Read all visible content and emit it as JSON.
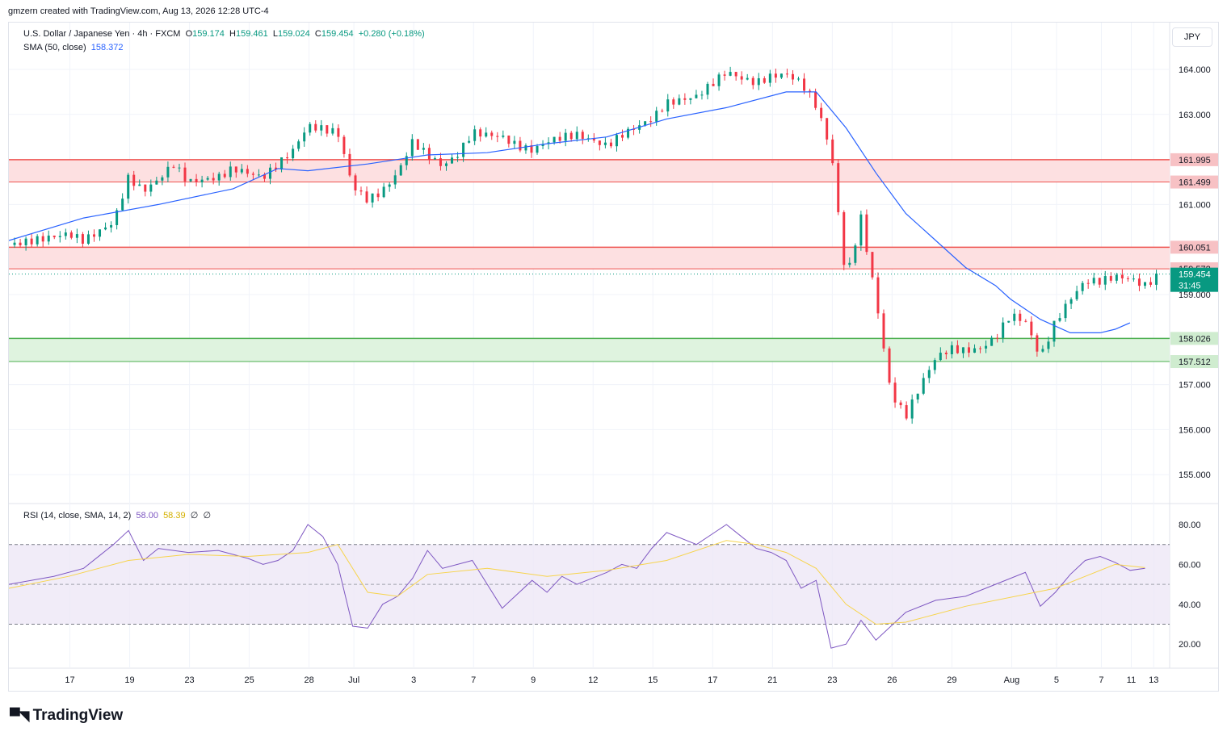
{
  "attribution": "gmzern created with TradingView.com, Aug 13, 2026 12:28 UTC-4",
  "legend": {
    "symbol": "U.S. Dollar / Japanese Yen · 4h · FXCM",
    "o_label": "O",
    "o": "159.174",
    "h_label": "H",
    "h": "159.461",
    "l_label": "L",
    "l": "159.024",
    "c_label": "C",
    "c": "159.454",
    "change": "+0.280 (+0.18%)",
    "sma_label": "SMA (50, close)",
    "sma_value": "158.372",
    "rsi_label": "RSI (14, close, SMA, 14, 2)",
    "rsi_value": "58.00",
    "rsi_ma": "58.39",
    "rsi_extra1": "∅",
    "rsi_extra2": "∅"
  },
  "currency_button": "JPY",
  "footer_logo": "TradingView",
  "colors": {
    "up": "#089981",
    "down": "#f23645",
    "sma": "#2962ff",
    "rsi": "#7e57c2",
    "rsi_ma": "#f7d44c",
    "resistance_fill": "#fde0e1",
    "support_fill": "#dff3df"
  },
  "chart_data": {
    "type": "candlestick",
    "price_axis": {
      "min": 155.0,
      "max": 164.0,
      "ticks": [
        "164.000",
        "163.000",
        "161.000",
        "159.000",
        "157.000",
        "156.000",
        "155.000"
      ]
    },
    "x_ticks": [
      "17",
      "19",
      "23",
      "25",
      "28",
      "Jul",
      "3",
      "7",
      "9",
      "12",
      "15",
      "17",
      "21",
      "23",
      "26",
      "29",
      "Aug",
      "5",
      "7",
      "11",
      "13"
    ],
    "zones": [
      {
        "kind": "resistance",
        "top": 161.995,
        "bottom": 161.499,
        "top_label": "161.995",
        "bottom_label": "161.499"
      },
      {
        "kind": "resistance",
        "top": 160.051,
        "bottom": 159.572,
        "top_label": "160.051",
        "bottom_label": "159.572"
      },
      {
        "kind": "support",
        "top": 158.026,
        "bottom": 157.512,
        "top_label": "158.026",
        "bottom_label": "157.512"
      }
    ],
    "last_price": {
      "value": 159.454,
      "label": "159.454",
      "countdown": "31:45"
    },
    "price_path": [
      [
        0,
        160.1
      ],
      [
        4,
        160.35
      ],
      [
        5,
        160.2
      ],
      [
        7,
        160.6
      ],
      [
        8,
        161.6
      ],
      [
        9,
        161.3
      ],
      [
        10,
        161.55
      ],
      [
        11,
        161.9
      ],
      [
        12,
        161.5
      ],
      [
        14,
        161.6
      ],
      [
        15,
        161.8
      ],
      [
        16,
        161.7
      ],
      [
        17,
        161.6
      ],
      [
        18,
        161.9
      ],
      [
        19,
        162.2
      ],
      [
        20,
        162.75
      ],
      [
        22,
        162.6
      ],
      [
        23,
        161.4
      ],
      [
        24,
        161.1
      ],
      [
        25,
        161.3
      ],
      [
        26,
        161.7
      ],
      [
        27,
        162.4
      ],
      [
        28,
        162.1
      ],
      [
        29,
        161.85
      ],
      [
        30,
        162.1
      ],
      [
        31,
        162.6
      ],
      [
        33,
        162.5
      ],
      [
        34,
        162.3
      ],
      [
        35,
        162.2
      ],
      [
        36,
        162.4
      ],
      [
        37,
        162.5
      ],
      [
        38,
        162.55
      ],
      [
        40,
        162.3
      ],
      [
        41,
        162.55
      ],
      [
        43,
        162.9
      ],
      [
        44,
        163.25
      ],
      [
        46,
        163.4
      ],
      [
        48,
        163.95
      ],
      [
        49,
        163.8
      ],
      [
        50,
        163.7
      ],
      [
        51,
        163.85
      ],
      [
        52,
        163.9
      ],
      [
        53,
        163.7
      ],
      [
        54,
        163.2
      ],
      [
        55,
        162.2
      ],
      [
        56,
        159.3
      ],
      [
        57,
        160.7
      ],
      [
        58,
        158.9
      ],
      [
        59,
        156.8
      ],
      [
        60,
        156.3
      ],
      [
        61,
        157.0
      ],
      [
        62,
        157.6
      ],
      [
        63,
        157.8
      ],
      [
        64,
        157.75
      ],
      [
        65,
        157.8
      ],
      [
        66,
        158.05
      ],
      [
        67,
        158.55
      ],
      [
        68,
        158.4
      ],
      [
        69,
        157.6
      ],
      [
        70,
        158.4
      ],
      [
        71,
        158.9
      ],
      [
        72,
        159.3
      ],
      [
        73,
        159.3
      ],
      [
        74,
        159.4
      ],
      [
        75,
        159.35
      ],
      [
        76,
        159.2
      ],
      [
        77,
        159.454
      ]
    ],
    "sma_path": [
      [
        0,
        160.2
      ],
      [
        5,
        160.7
      ],
      [
        10,
        161.0
      ],
      [
        15,
        161.35
      ],
      [
        18,
        161.8
      ],
      [
        20,
        161.75
      ],
      [
        24,
        161.9
      ],
      [
        28,
        162.1
      ],
      [
        32,
        162.15
      ],
      [
        36,
        162.35
      ],
      [
        40,
        162.5
      ],
      [
        44,
        162.9
      ],
      [
        48,
        163.15
      ],
      [
        52,
        163.5
      ],
      [
        54,
        163.5
      ],
      [
        56,
        162.7
      ],
      [
        58,
        161.7
      ],
      [
        60,
        160.8
      ],
      [
        62,
        160.2
      ],
      [
        64,
        159.6
      ],
      [
        66,
        159.2
      ],
      [
        67,
        158.9
      ],
      [
        69,
        158.45
      ],
      [
        71,
        158.15
      ],
      [
        73,
        158.15
      ],
      [
        74,
        158.23
      ],
      [
        75,
        158.372
      ]
    ],
    "rsi": {
      "axis": {
        "min": 20,
        "max": 80,
        "ticks": [
          "80.00",
          "60.00",
          "40.00",
          "20.00"
        ]
      },
      "band": [
        30,
        70
      ],
      "mid": 50,
      "values": [
        [
          0,
          50
        ],
        [
          3,
          54
        ],
        [
          5,
          58
        ],
        [
          7,
          70
        ],
        [
          8,
          77
        ],
        [
          9,
          62
        ],
        [
          10,
          68
        ],
        [
          12,
          66
        ],
        [
          14,
          67
        ],
        [
          16,
          63
        ],
        [
          17,
          60
        ],
        [
          18,
          62
        ],
        [
          19,
          67
        ],
        [
          20,
          80
        ],
        [
          21,
          74
        ],
        [
          22,
          60
        ],
        [
          23,
          29
        ],
        [
          24,
          28
        ],
        [
          25,
          40
        ],
        [
          26,
          44
        ],
        [
          27,
          53
        ],
        [
          28,
          67
        ],
        [
          29,
          58
        ],
        [
          31,
          62
        ],
        [
          32,
          50
        ],
        [
          33,
          38
        ],
        [
          35,
          52
        ],
        [
          36,
          46
        ],
        [
          37,
          54
        ],
        [
          38,
          50
        ],
        [
          40,
          56
        ],
        [
          41,
          60
        ],
        [
          42,
          58
        ],
        [
          43,
          68
        ],
        [
          44,
          76
        ],
        [
          46,
          70
        ],
        [
          48,
          80
        ],
        [
          49,
          74
        ],
        [
          50,
          68
        ],
        [
          51,
          66
        ],
        [
          52,
          62
        ],
        [
          53,
          48
        ],
        [
          54,
          52
        ],
        [
          55,
          18
        ],
        [
          56,
          20
        ],
        [
          57,
          32
        ],
        [
          58,
          22
        ],
        [
          60,
          36
        ],
        [
          62,
          42
        ],
        [
          64,
          44
        ],
        [
          66,
          50
        ],
        [
          68,
          56
        ],
        [
          69,
          39
        ],
        [
          70,
          46
        ],
        [
          71,
          55
        ],
        [
          72,
          62
        ],
        [
          73,
          64
        ],
        [
          74,
          61
        ],
        [
          75,
          57
        ],
        [
          76,
          58
        ]
      ],
      "ma_values": [
        [
          0,
          48
        ],
        [
          4,
          54
        ],
        [
          8,
          62
        ],
        [
          12,
          65
        ],
        [
          16,
          64
        ],
        [
          20,
          66
        ],
        [
          22,
          70
        ],
        [
          24,
          46
        ],
        [
          26,
          44
        ],
        [
          28,
          55
        ],
        [
          32,
          58
        ],
        [
          36,
          54
        ],
        [
          40,
          57
        ],
        [
          44,
          62
        ],
        [
          48,
          72
        ],
        [
          50,
          70
        ],
        [
          52,
          66
        ],
        [
          54,
          58
        ],
        [
          56,
          40
        ],
        [
          58,
          30
        ],
        [
          60,
          31
        ],
        [
          64,
          39
        ],
        [
          68,
          45
        ],
        [
          70,
          48
        ],
        [
          72,
          54
        ],
        [
          74,
          60
        ],
        [
          76,
          58.39
        ]
      ]
    }
  }
}
